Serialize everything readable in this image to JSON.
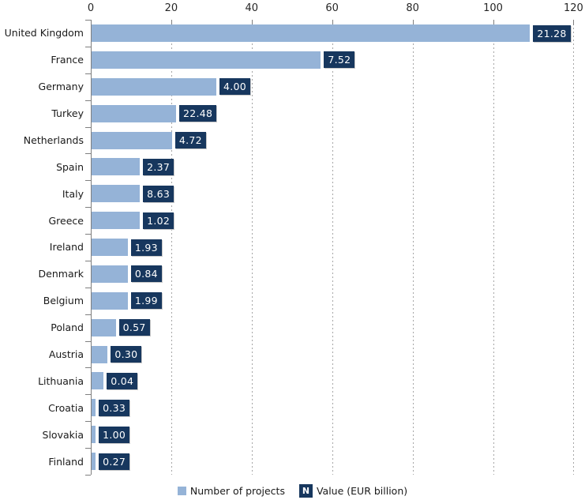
{
  "chart_data": {
    "type": "bar",
    "orientation": "horizontal",
    "title": "",
    "categories": [
      "United Kingdom",
      "France",
      "Germany",
      "Turkey",
      "Netherlands",
      "Spain",
      "Italy",
      "Greece",
      "Ireland",
      "Denmark",
      "Belgium",
      "Poland",
      "Austria",
      "Lithuania",
      "Croatia",
      "Slovakia",
      "Finland"
    ],
    "series": [
      {
        "name": "Number of projects",
        "role": "bar-length",
        "values": [
          109,
          57,
          31,
          21,
          20,
          12,
          12,
          12,
          9,
          9,
          9,
          6,
          4,
          3,
          1,
          1,
          1
        ]
      },
      {
        "name": "Value (EUR billion)",
        "role": "data-label",
        "values": [
          "21.28",
          "7.52",
          "4.00",
          "22.48",
          "4.72",
          "2.37",
          "8.63",
          "1.02",
          "1.93",
          "0.84",
          "1.99",
          "0.57",
          "0.30",
          "0.04",
          "0.33",
          "1.00",
          "0.27"
        ]
      }
    ],
    "x_axis": {
      "position": "top",
      "min": 0,
      "max": 120,
      "ticks": [
        0,
        20,
        40,
        60,
        80,
        100,
        120
      ]
    },
    "grid": "vertical-dashed",
    "legend": {
      "position": "bottom",
      "items": [
        {
          "label": "Number of projects",
          "swatch": "light-blue-square"
        },
        {
          "label": "Value (EUR billion)",
          "swatch": "navy-box",
          "glyph": "N"
        }
      ]
    },
    "colors": {
      "bar": "#95B3D7",
      "value_box": "#17375E",
      "value_box_text": "#FFFFFF",
      "axis_line": "#7F7F7F",
      "gridline": "#A6A6A6",
      "text": "#1A1A1A"
    }
  }
}
